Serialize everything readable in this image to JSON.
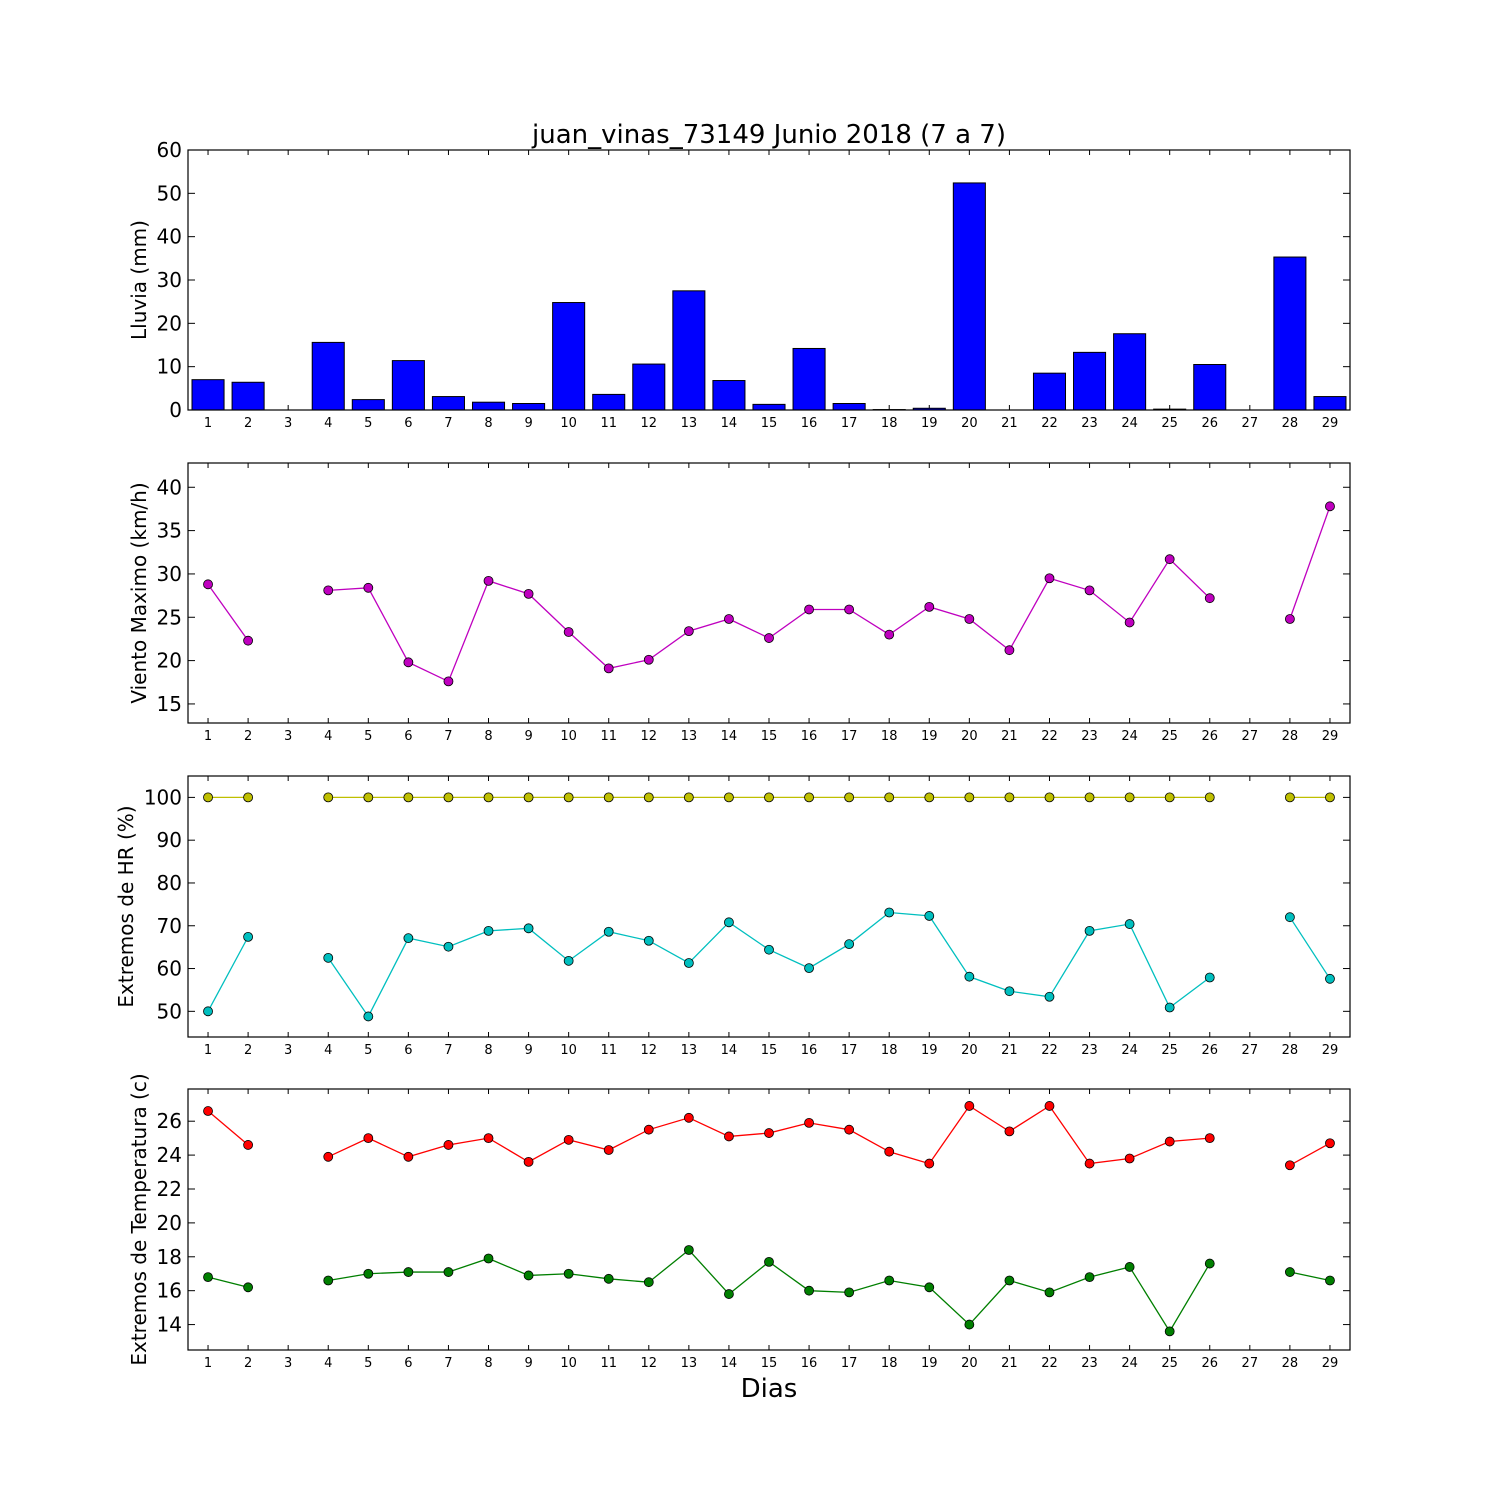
{
  "chart_data": {
    "title": "juan_vinas_73149 Junio 2018  (7 a 7)",
    "xlabel": "Dias",
    "days": [
      1,
      2,
      3,
      4,
      5,
      6,
      7,
      8,
      9,
      10,
      11,
      12,
      13,
      14,
      15,
      16,
      17,
      18,
      19,
      20,
      21,
      22,
      23,
      24,
      25,
      26,
      27,
      28,
      29
    ],
    "panels": [
      {
        "type": "bar",
        "ylabel": "Lluvia (mm)",
        "ylim": [
          0,
          60
        ],
        "yticks": [
          0,
          10,
          20,
          30,
          40,
          50,
          60
        ],
        "series": [
          {
            "color": "#0000ff",
            "values": [
              7.0,
              6.4,
              0,
              15.6,
              2.4,
              11.4,
              3.1,
              1.8,
              1.5,
              24.8,
              3.6,
              10.6,
              27.5,
              6.8,
              1.3,
              14.2,
              1.5,
              0.1,
              0.4,
              52.4,
              0,
              8.5,
              13.3,
              17.6,
              0.2,
              10.5,
              0,
              35.3,
              3.1
            ]
          }
        ]
      },
      {
        "type": "line",
        "ylabel": "Viento Maximo (km/h)",
        "ylim": [
          12.8,
          42.8
        ],
        "yticks": [
          15,
          20,
          25,
          30,
          35,
          40
        ],
        "series": [
          {
            "color": "#bf00bf",
            "values": [
              28.8,
              22.3,
              null,
              28.1,
              28.4,
              19.8,
              17.6,
              29.2,
              27.7,
              23.3,
              19.1,
              20.1,
              23.4,
              24.8,
              22.6,
              25.9,
              25.9,
              23.0,
              26.2,
              24.8,
              21.2,
              29.5,
              28.1,
              24.4,
              31.7,
              27.2,
              null,
              24.8,
              37.8
            ]
          }
        ]
      },
      {
        "type": "line",
        "ylabel": "Extremos de HR (%)",
        "ylim": [
          44,
          105
        ],
        "yticks": [
          50,
          60,
          70,
          80,
          90,
          100
        ],
        "series": [
          {
            "color": "#bfbf00",
            "values": [
              100,
              100,
              null,
              100,
              100,
              100,
              100,
              100,
              100,
              100,
              100,
              100,
              100,
              100,
              100,
              100,
              100,
              100,
              100,
              100,
              100,
              100,
              100,
              100,
              100,
              100,
              null,
              100,
              100
            ]
          },
          {
            "color": "#00bfbf",
            "values": [
              50.0,
              67.4,
              null,
              62.5,
              48.8,
              67.1,
              65.1,
              68.8,
              69.4,
              61.8,
              68.6,
              66.5,
              61.3,
              70.8,
              64.4,
              60.1,
              65.7,
              73.1,
              72.3,
              58.1,
              54.7,
              53.4,
              68.8,
              70.4,
              50.9,
              57.9,
              null,
              72.0,
              57.6
            ]
          }
        ]
      },
      {
        "type": "line",
        "ylabel": "Extremos de Temperatura (c)",
        "ylim": [
          12.5,
          27.9
        ],
        "yticks": [
          14,
          16,
          18,
          20,
          22,
          24,
          26
        ],
        "series": [
          {
            "color": "#ff0000",
            "values": [
              26.6,
              24.6,
              null,
              23.9,
              25.0,
              23.9,
              24.6,
              25.0,
              23.6,
              24.9,
              24.3,
              25.5,
              26.2,
              25.1,
              25.3,
              25.9,
              25.5,
              24.2,
              23.5,
              26.9,
              25.4,
              26.9,
              23.5,
              23.8,
              24.8,
              25.0,
              null,
              23.4,
              24.7
            ]
          },
          {
            "color": "#007f00",
            "values": [
              16.8,
              16.2,
              null,
              16.6,
              17.0,
              17.1,
              17.1,
              17.9,
              16.9,
              17.0,
              16.7,
              16.5,
              18.4,
              15.8,
              17.7,
              16.0,
              15.9,
              16.6,
              16.2,
              14.0,
              16.6,
              15.9,
              16.8,
              17.4,
              13.6,
              17.6,
              null,
              17.1,
              16.6
            ]
          }
        ]
      }
    ]
  }
}
